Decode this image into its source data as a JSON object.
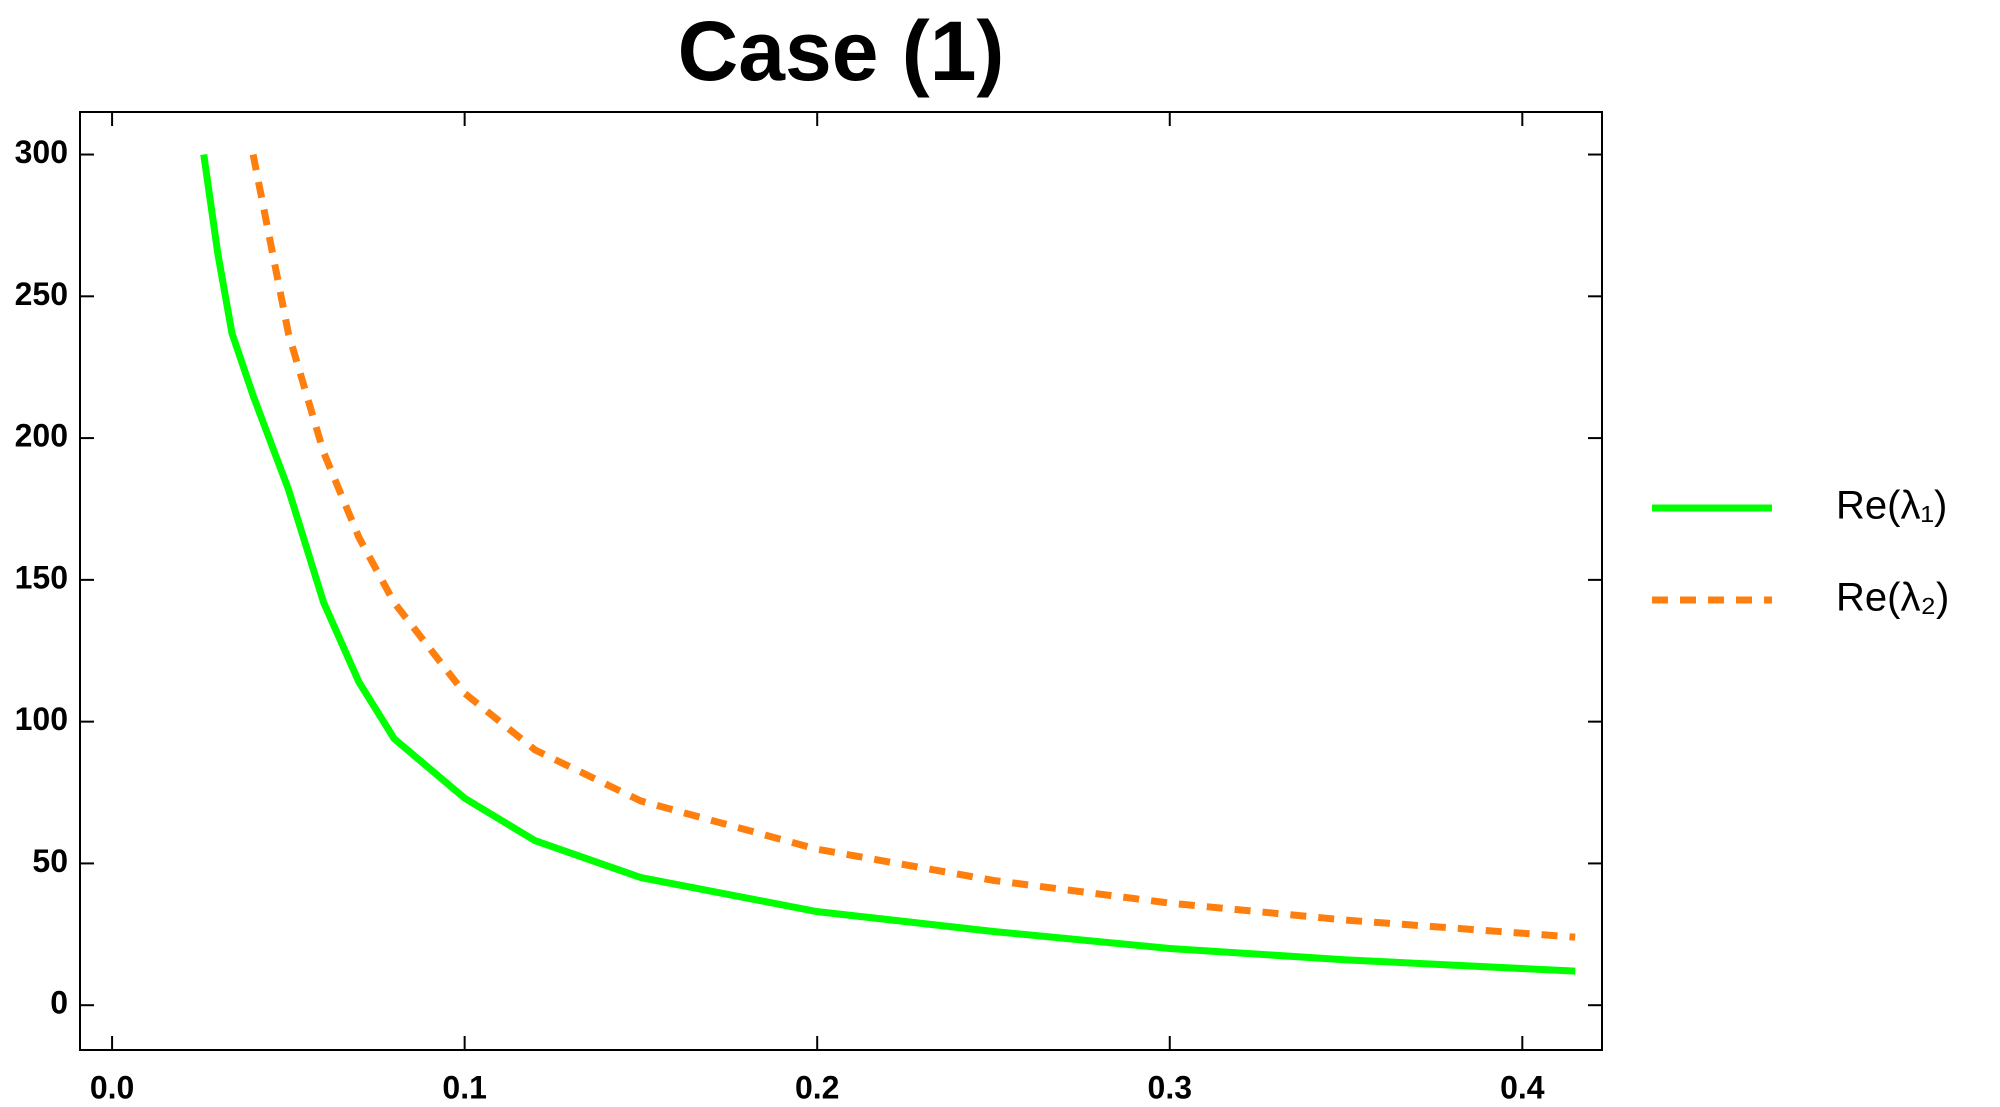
{
  "chart_data": {
    "type": "line",
    "title": "Case (1)",
    "series": [
      {
        "name": "Re(λ₁)",
        "color": "#00ff00",
        "style": "solid",
        "x": [
          0.026,
          0.03,
          0.034,
          0.04,
          0.05,
          0.06,
          0.07,
          0.08,
          0.1,
          0.12,
          0.15,
          0.2,
          0.25,
          0.3,
          0.35,
          0.415
        ],
        "values": [
          300,
          265,
          237,
          215,
          182,
          142,
          114,
          94,
          73,
          58,
          45,
          33,
          26,
          20,
          16,
          12
        ]
      },
      {
        "name": "Re(λ₂)",
        "color": "#ff7f0e",
        "style": "dashed",
        "x": [
          0.04,
          0.05,
          0.06,
          0.07,
          0.08,
          0.1,
          0.12,
          0.15,
          0.2,
          0.25,
          0.3,
          0.35,
          0.415
        ],
        "values": [
          300,
          237,
          195,
          165,
          142,
          110,
          90,
          72,
          55,
          44,
          36,
          30,
          24
        ]
      }
    ],
    "xlim": [
      -0.0091,
      0.4226
    ],
    "ylim": [
      -15.8,
      315
    ],
    "xticks": [
      {
        "value": 0,
        "label": "0.0"
      },
      0.1,
      0.2,
      0.3,
      0.4
    ],
    "yticks": [
      0,
      50,
      100,
      150,
      200,
      250,
      300
    ],
    "grid": false,
    "legend": "right"
  }
}
